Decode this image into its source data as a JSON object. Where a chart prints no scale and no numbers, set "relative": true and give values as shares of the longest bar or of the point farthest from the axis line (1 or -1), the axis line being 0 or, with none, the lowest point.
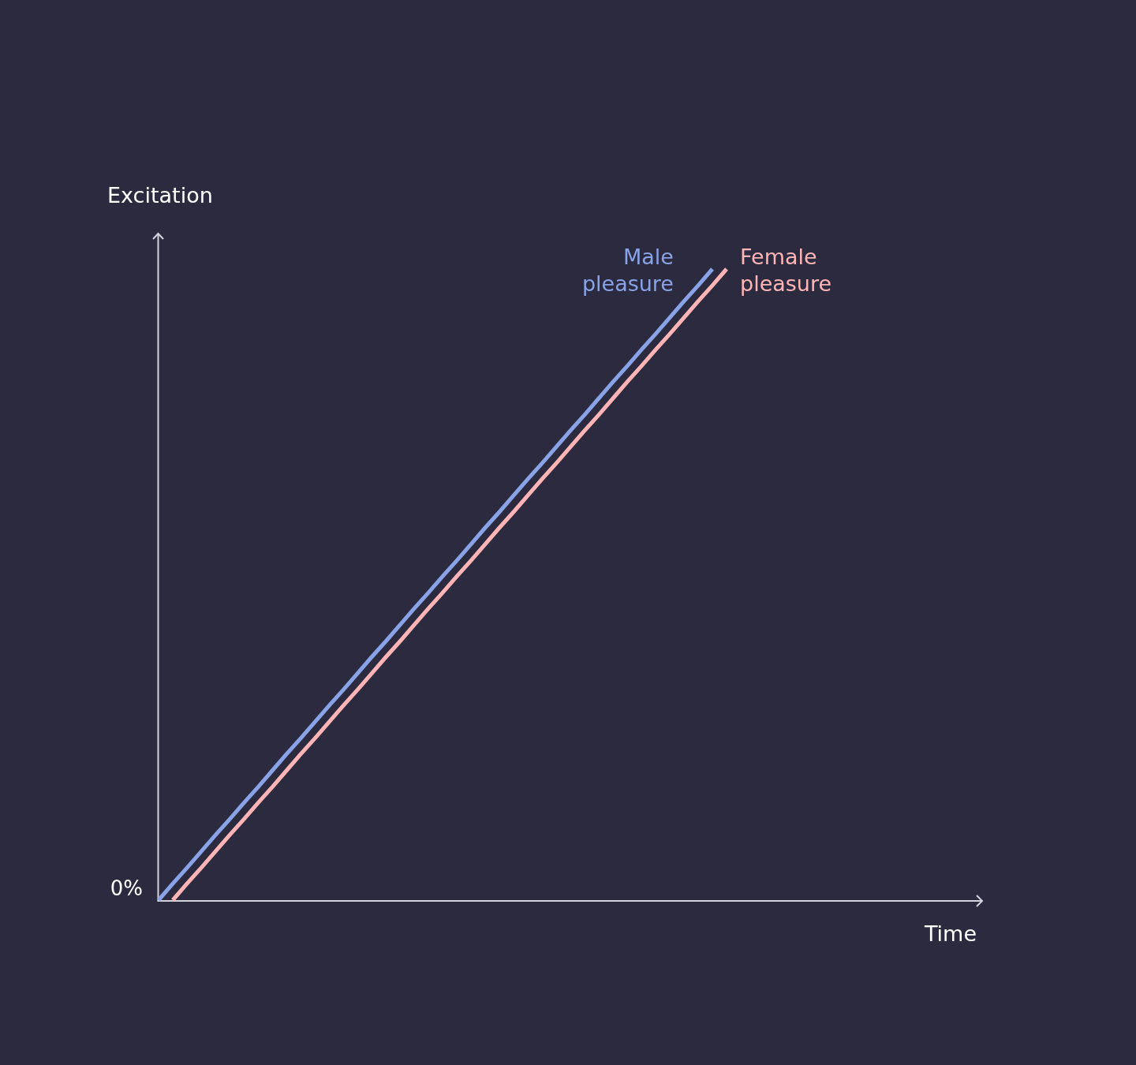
{
  "chart_data": {
    "type": "line",
    "relative": true,
    "xlabel": "Time",
    "ylabel": "Excitation",
    "annotations": [
      "0%"
    ],
    "categories": [
      null,
      null,
      null,
      null,
      null,
      null,
      null,
      null,
      null,
      null,
      null,
      null,
      null,
      null,
      null,
      null,
      null,
      null,
      null,
      null,
      null,
      null,
      null,
      null,
      null,
      null,
      null,
      null,
      null,
      null,
      null,
      null,
      null,
      null,
      null,
      null,
      null,
      null,
      null,
      null,
      null,
      null,
      null,
      null,
      null,
      null,
      null,
      null,
      null,
      null,
      null,
      null,
      null,
      null,
      null,
      null,
      null,
      null,
      null
    ],
    "series": [
      {
        "name": "Male pleasure",
        "color": "#8aa3e6",
        "values": [
          0,
          0.026,
          0.051,
          0.077,
          0.103,
          0.128,
          0.154,
          0.179,
          0.205,
          0.231,
          0.256,
          0.282,
          0.308,
          0.333,
          0.359,
          0.385,
          0.41,
          0.436,
          0.462,
          0.487,
          0.513,
          0.538,
          0.564,
          0.59,
          0.615,
          0.641,
          0.667,
          0.692,
          0.718,
          0.744,
          0.769,
          0.795,
          0.821,
          0.846,
          0.872,
          0.897,
          0.923,
          0.949,
          0.974,
          1,
          null,
          null,
          null,
          null,
          null,
          null,
          null,
          null,
          null,
          null,
          null,
          null,
          null,
          null,
          null,
          null,
          null,
          null,
          null
        ]
      },
      {
        "name": "Female pleasure",
        "color": "#ffb5b5",
        "values": [
          null,
          0,
          0.026,
          0.051,
          0.077,
          0.103,
          0.128,
          0.154,
          0.179,
          0.205,
          0.231,
          0.256,
          0.282,
          0.308,
          0.333,
          0.359,
          0.385,
          0.41,
          0.436,
          0.462,
          0.487,
          0.513,
          0.538,
          0.564,
          0.59,
          0.615,
          0.641,
          0.667,
          0.692,
          0.718,
          0.744,
          0.769,
          0.795,
          0.821,
          0.846,
          0.872,
          0.897,
          0.923,
          0.949,
          0.974,
          1,
          null,
          null,
          null,
          null,
          null,
          null,
          null,
          null,
          null,
          null,
          null,
          null,
          null,
          null,
          null,
          null,
          null,
          null
        ]
      }
    ]
  }
}
